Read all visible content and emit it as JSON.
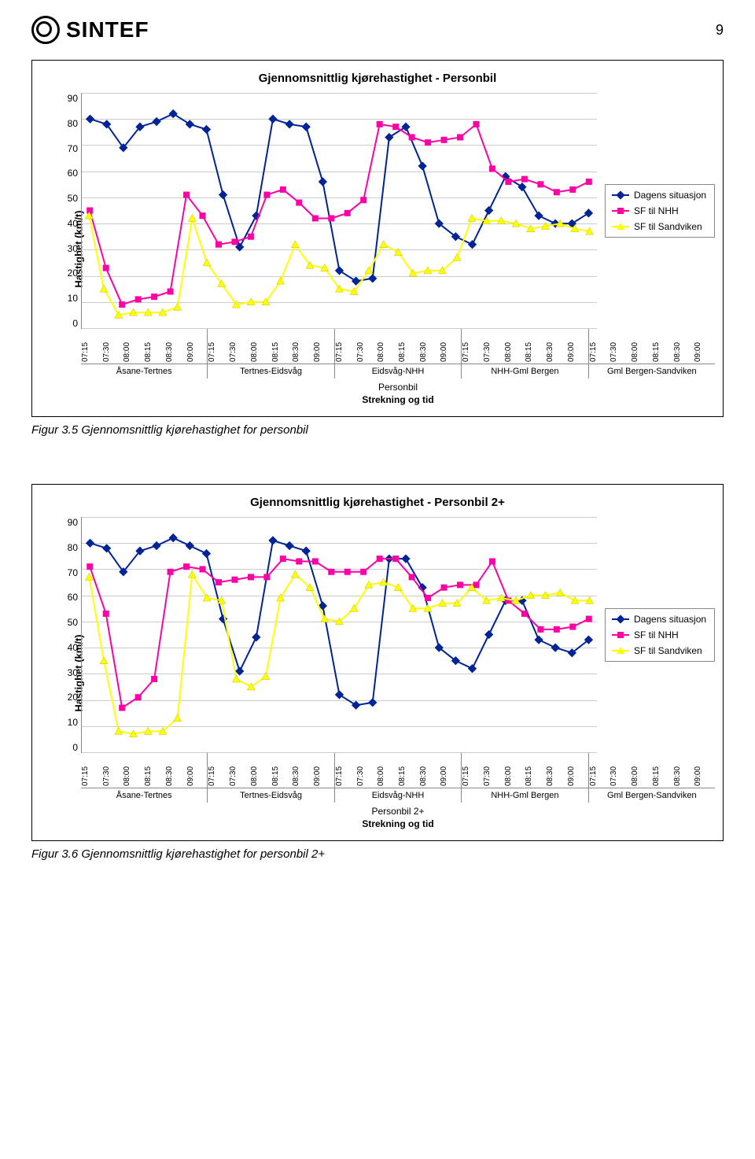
{
  "header": {
    "logo_text": "SINTEF",
    "page_number": "9"
  },
  "legend": {
    "items": [
      {
        "label": "Dagens situasjon",
        "color": "#002395",
        "marker": "diamond"
      },
      {
        "label": "SF til NHH",
        "color": "#ff00a5",
        "marker": "square"
      },
      {
        "label": "SF til Sandviken",
        "color": "#ffff00",
        "marker": "triangle"
      }
    ]
  },
  "chart1": {
    "title": "Gjennomsnittlig kjørehastighet - Personbil",
    "ylabel": "Hastighet (km/t)",
    "ymin": 0,
    "ymax": 90,
    "ystep": 10,
    "x_groups": [
      "Åsane-Tertnes",
      "Tertnes-Eidsvåg",
      "Eidsvåg-NHH",
      "NHH-Gml Bergen",
      "Gml Bergen-Sandviken"
    ],
    "x_ticks": [
      "07:15",
      "07:30",
      "08:00",
      "08:15",
      "08:30",
      "09:00"
    ],
    "x_super1": "Personbil",
    "x_super2": "Strekning og tid",
    "series": [
      {
        "name": "Dagens situasjon",
        "color": "#002395",
        "marker": "diamond",
        "values": [
          80,
          78,
          69,
          77,
          79,
          82,
          78,
          76,
          51,
          31,
          43,
          80,
          78,
          77,
          56,
          22,
          18,
          19,
          73,
          77,
          62,
          40,
          35,
          32,
          45,
          58,
          54,
          43,
          40,
          40,
          44
        ]
      },
      {
        "name": "SF til NHH",
        "color": "#ff00a5",
        "marker": "square",
        "values": [
          45,
          23,
          9,
          11,
          12,
          14,
          51,
          43,
          32,
          33,
          35,
          51,
          53,
          48,
          42,
          42,
          44,
          49,
          78,
          77,
          73,
          71,
          72,
          73,
          78,
          61,
          56,
          57,
          55,
          52,
          53,
          56
        ]
      },
      {
        "name": "SF til Sandviken",
        "color": "#ffff00",
        "marker": "triangle",
        "values": [
          43,
          15,
          5,
          6,
          6,
          6,
          8,
          42,
          25,
          17,
          9,
          10,
          10,
          18,
          32,
          24,
          23,
          15,
          14,
          22,
          32,
          29,
          21,
          22,
          22,
          27,
          42,
          41,
          41,
          40,
          38,
          39,
          40,
          38,
          37
        ]
      }
    ]
  },
  "chart2": {
    "title": "Gjennomsnittlig kjørehastighet - Personbil 2+",
    "ylabel": "Hastighet (km/t)",
    "ymin": 0,
    "ymax": 90,
    "ystep": 10,
    "x_groups": [
      "Åsane-Tertnes",
      "Tertnes-Eidsvåg",
      "Eidsvåg-NHH",
      "NHH-Gml Bergen",
      "Gml Bergen-Sandviken"
    ],
    "x_ticks": [
      "07:15",
      "07:30",
      "08:00",
      "08:15",
      "08:30",
      "09:00"
    ],
    "x_super1": "Personbil 2+",
    "x_super2": "Strekning og tid",
    "series": [
      {
        "name": "Dagens situasjon",
        "color": "#002395",
        "marker": "diamond",
        "values": [
          80,
          78,
          69,
          77,
          79,
          82,
          79,
          76,
          51,
          31,
          44,
          81,
          79,
          77,
          56,
          22,
          18,
          19,
          74,
          74,
          63,
          40,
          35,
          32,
          45,
          58,
          58,
          43,
          40,
          38,
          43
        ]
      },
      {
        "name": "SF til NHH",
        "color": "#ff00a5",
        "marker": "square",
        "values": [
          71,
          53,
          17,
          21,
          28,
          69,
          71,
          70,
          65,
          66,
          67,
          67,
          74,
          73,
          73,
          69,
          69,
          69,
          74,
          74,
          67,
          59,
          63,
          64,
          64,
          73,
          58,
          53,
          47,
          47,
          48,
          51
        ]
      },
      {
        "name": "SF til Sandviken",
        "color": "#ffff00",
        "marker": "triangle",
        "values": [
          67,
          35,
          8,
          7,
          8,
          8,
          13,
          68,
          59,
          58,
          28,
          25,
          29,
          59,
          68,
          63,
          51,
          50,
          55,
          64,
          65,
          63,
          55,
          55,
          57,
          57,
          63,
          58,
          59,
          58,
          60,
          60,
          61,
          58,
          58
        ]
      }
    ]
  },
  "captions": {
    "c1": "Figur 3.5 Gjennomsnittlig kjørehastighet for personbil",
    "c2": "Figur 3.6 Gjennomsnittlig kjørehastighet for personbil 2+"
  },
  "colors": {
    "grid": "#cccccc",
    "axis": "#888888",
    "frame": "#000000",
    "bg": "#ffffff"
  }
}
